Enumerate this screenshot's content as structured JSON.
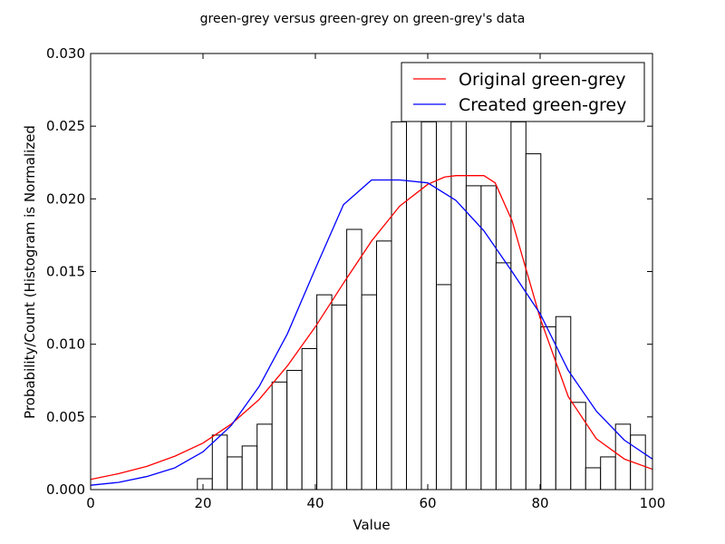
{
  "chart_data": {
    "type": "bar",
    "title": "green-grey versus green-grey on green-grey's data",
    "xlabel": "Value",
    "ylabel": "Probability/Count (Histogram is Normalized",
    "xlim": [
      0,
      100
    ],
    "ylim": [
      0,
      0.03
    ],
    "grid": false,
    "legend_position": "top-right",
    "x_ticks": [
      "0",
      "20",
      "40",
      "60",
      "80",
      "100"
    ],
    "y_ticks": [
      "0.000",
      "0.005",
      "0.010",
      "0.015",
      "0.020",
      "0.025",
      "0.030"
    ],
    "histogram": {
      "name": "histogram",
      "color": "#000000",
      "bin_edges": [
        19.0,
        21.66,
        24.32,
        26.97,
        29.63,
        32.29,
        34.95,
        37.61,
        40.26,
        42.92,
        45.58,
        48.24,
        50.89,
        53.55,
        56.21,
        58.87,
        61.53,
        64.18,
        66.84,
        69.5,
        72.16,
        74.82,
        77.47,
        80.13,
        82.79,
        85.45,
        88.11,
        90.76,
        93.42,
        96.08,
        98.74
      ],
      "values": [
        0.00075,
        0.00375,
        0.00225,
        0.003,
        0.0045,
        0.0074,
        0.0082,
        0.0097,
        0.0134,
        0.0127,
        0.0179,
        0.0134,
        0.0171,
        0.0253,
        0.0268,
        0.0253,
        0.0141,
        0.0268,
        0.0209,
        0.0209,
        0.0156,
        0.0253,
        0.0231,
        0.0112,
        0.0119,
        0.006,
        0.0015,
        0.00225,
        0.0045,
        0.00375
      ]
    },
    "series": [
      {
        "name": "Original green-grey",
        "color": "#ff0000",
        "x": [
          0,
          5,
          10,
          15,
          20,
          25,
          30,
          35,
          40,
          45,
          50,
          55,
          60,
          63,
          65,
          70,
          72,
          75,
          80,
          85,
          90,
          95,
          100
        ],
        "y": [
          0.0007,
          0.0011,
          0.0016,
          0.0023,
          0.0032,
          0.0045,
          0.0062,
          0.0085,
          0.0112,
          0.0142,
          0.0171,
          0.0195,
          0.021,
          0.0215,
          0.0216,
          0.0216,
          0.0211,
          0.0185,
          0.0118,
          0.0064,
          0.0035,
          0.0021,
          0.0014
        ]
      },
      {
        "name": "Created green-grey",
        "color": "#0000ff",
        "x": [
          0,
          5,
          10,
          15,
          20,
          25,
          30,
          35,
          40,
          45,
          50,
          55,
          60,
          65,
          70,
          75,
          80,
          85,
          90,
          95,
          100
        ],
        "y": [
          0.0003,
          0.0005,
          0.0009,
          0.0015,
          0.0026,
          0.0044,
          0.0071,
          0.0107,
          0.0152,
          0.0196,
          0.0213,
          0.0213,
          0.0211,
          0.0199,
          0.0178,
          0.015,
          0.0121,
          0.0082,
          0.0054,
          0.0034,
          0.0021
        ]
      }
    ]
  }
}
